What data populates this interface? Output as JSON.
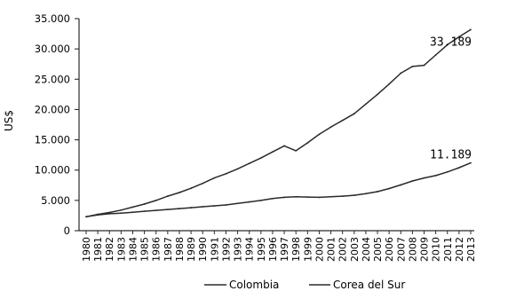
{
  "chart_data": {
    "type": "line",
    "title": "",
    "xlabel": "",
    "ylabel": "US$",
    "ylim": [
      0,
      35000
    ],
    "y_ticks": [
      {
        "value": 0,
        "label": "0"
      },
      {
        "value": 5000,
        "label": "5.000"
      },
      {
        "value": 10000,
        "label": "10.000"
      },
      {
        "value": 15000,
        "label": "15.000"
      },
      {
        "value": 20000,
        "label": "20.000"
      },
      {
        "value": 25000,
        "label": "25.000"
      },
      {
        "value": 30000,
        "label": "30.000"
      },
      {
        "value": 35000,
        "label": "35.000"
      }
    ],
    "x": [
      "1980",
      "1981",
      "1982",
      "1983",
      "1984",
      "1985",
      "1986",
      "1987",
      "1988",
      "1989",
      "1990",
      "1991",
      "1992",
      "1993",
      "1994",
      "1995",
      "1996",
      "1997",
      "1998",
      "1999",
      "2000",
      "2001",
      "2002",
      "2003",
      "2004",
      "2005",
      "2006",
      "2007",
      "2008",
      "2009",
      "2010",
      "2011",
      "2012",
      "2013"
    ],
    "series": [
      {
        "name": "Colombia",
        "color": "#2a2a2a",
        "values": [
          2300,
          2600,
          2800,
          2900,
          3050,
          3200,
          3350,
          3500,
          3650,
          3800,
          3950,
          4100,
          4250,
          4500,
          4750,
          5000,
          5300,
          5500,
          5600,
          5550,
          5500,
          5600,
          5700,
          5850,
          6100,
          6450,
          6950,
          7550,
          8200,
          8700,
          9100,
          9700,
          10400,
          11189
        ],
        "end_label": "11.189"
      },
      {
        "name": "Corea del Sur",
        "color": "#2a2a2a",
        "values": [
          2300,
          2700,
          3000,
          3400,
          3900,
          4400,
          5000,
          5700,
          6300,
          7000,
          7800,
          8700,
          9400,
          10200,
          11100,
          12000,
          13000,
          14000,
          13200,
          14500,
          15900,
          17100,
          18200,
          19300,
          20900,
          22500,
          24200,
          26000,
          27100,
          27300,
          29000,
          30700,
          32000,
          33189
        ],
        "end_label": "33.189"
      }
    ],
    "grid": false,
    "legend": "bottom-center"
  }
}
